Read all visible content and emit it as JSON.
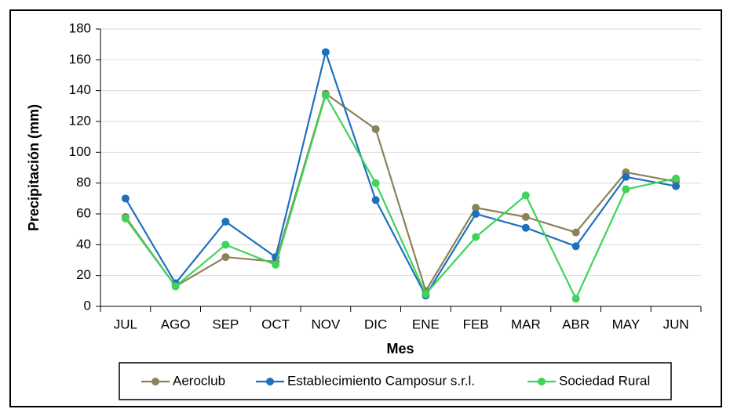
{
  "chart_data": {
    "type": "line",
    "xlabel": "Mes",
    "ylabel": "Precipitación (mm)",
    "categories": [
      "JUL",
      "AGO",
      "SEP",
      "OCT",
      "NOV",
      "DIC",
      "ENE",
      "FEB",
      "MAR",
      "ABR",
      "MAY",
      "JUN"
    ],
    "series": [
      {
        "name": "Aeroclub",
        "color": "#8c8258",
        "values": [
          58,
          13,
          32,
          29,
          138,
          115,
          10,
          64,
          58,
          48,
          87,
          81
        ]
      },
      {
        "name": "Establecimiento Camposur s.r.l.",
        "color": "#1f6fbf",
        "values": [
          70,
          15,
          55,
          32,
          165,
          69,
          7,
          60,
          51,
          39,
          84,
          78
        ]
      },
      {
        "name": "Sociedad Rural",
        "color": "#3fd35a",
        "values": [
          57,
          13,
          40,
          27,
          137,
          80,
          8,
          45,
          72,
          5,
          76,
          83
        ]
      }
    ],
    "ylim": [
      0,
      180
    ],
    "yticks": [
      0,
      20,
      40,
      60,
      80,
      100,
      120,
      140,
      160,
      180
    ],
    "grid": true,
    "legend": "bottom"
  }
}
